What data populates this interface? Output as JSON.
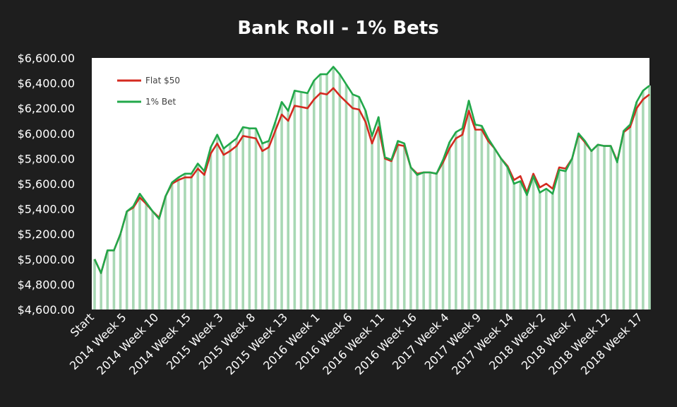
{
  "chart_data": {
    "type": "line",
    "title": "Bank Roll - 1% Bets",
    "xlabel": "",
    "ylabel": "",
    "ylim": [
      4600,
      6600
    ],
    "yticks": [
      4600,
      4800,
      5000,
      5200,
      5400,
      5600,
      5800,
      6000,
      6200,
      6400,
      6600
    ],
    "ytick_labels": [
      "$4,600.00",
      "$4,800.00",
      "$5,000.00",
      "$5,200.00",
      "$5,400.00",
      "$5,600.00",
      "$5,800.00",
      "$6,000.00",
      "$6,200.00",
      "$6,400.00",
      "$6,600.00"
    ],
    "xtick_labels": [
      "Start",
      "2014 Week 5",
      "2014 Week 10",
      "2014 Week 15",
      "2015 Week 3",
      "2015 Week 8",
      "2015 Week 13",
      "2016 Week 1",
      "2016 Week 6",
      "2016 Week 11",
      "2016 Week 16",
      "2017 Week 4",
      "2017 Week 9",
      "2017 Week 14",
      "2018 Week 2",
      "2018 Week 7",
      "2018 Week 12",
      "2018 Week 17"
    ],
    "xtick_every": 5,
    "grid": false,
    "legend_position": "top-left",
    "colors": {
      "background": "#1e1e1e",
      "plot_background": "#ffffff",
      "text": "#ffffff",
      "drop_lines": "#a8d8b4",
      "flat": "#d42a20",
      "pct": "#22a84a"
    },
    "series": [
      {
        "name": "Flat $50",
        "color": "#d42a20",
        "values": [
          5000,
          4890,
          5070,
          5070,
          5200,
          5380,
          5410,
          5490,
          5440,
          5380,
          5330,
          5500,
          5600,
          5630,
          5650,
          5650,
          5720,
          5670,
          5840,
          5920,
          5830,
          5860,
          5900,
          5980,
          5970,
          5960,
          5860,
          5890,
          6020,
          6150,
          6100,
          6220,
          6210,
          6200,
          6270,
          6320,
          6310,
          6360,
          6300,
          6250,
          6200,
          6190,
          6090,
          5920,
          6050,
          5800,
          5780,
          5910,
          5900,
          5730,
          5680,
          5690,
          5690,
          5680,
          5770,
          5880,
          5960,
          5990,
          6180,
          6030,
          6030,
          5940,
          5880,
          5800,
          5740,
          5630,
          5660,
          5530,
          5680,
          5570,
          5600,
          5560,
          5730,
          5720,
          5800,
          5990,
          5930,
          5860,
          5910,
          5900,
          5900,
          5780,
          6010,
          6050,
          6200,
          6270,
          6310
        ]
      },
      {
        "name": "1% Bet",
        "color": "#22a84a",
        "values": [
          5000,
          4890,
          5070,
          5070,
          5200,
          5380,
          5420,
          5520,
          5450,
          5380,
          5320,
          5500,
          5610,
          5650,
          5680,
          5680,
          5760,
          5700,
          5890,
          5990,
          5880,
          5920,
          5960,
          6050,
          6040,
          6040,
          5920,
          5940,
          6090,
          6250,
          6180,
          6340,
          6330,
          6320,
          6420,
          6470,
          6470,
          6530,
          6470,
          6390,
          6310,
          6290,
          6180,
          5980,
          6130,
          5810,
          5790,
          5940,
          5920,
          5730,
          5670,
          5690,
          5690,
          5680,
          5790,
          5930,
          6010,
          6040,
          6260,
          6070,
          6060,
          5960,
          5880,
          5800,
          5730,
          5600,
          5620,
          5510,
          5660,
          5530,
          5560,
          5520,
          5710,
          5700,
          5800,
          6000,
          5940,
          5860,
          5910,
          5900,
          5900,
          5770,
          6020,
          6070,
          6250,
          6340,
          6380
        ]
      }
    ]
  }
}
